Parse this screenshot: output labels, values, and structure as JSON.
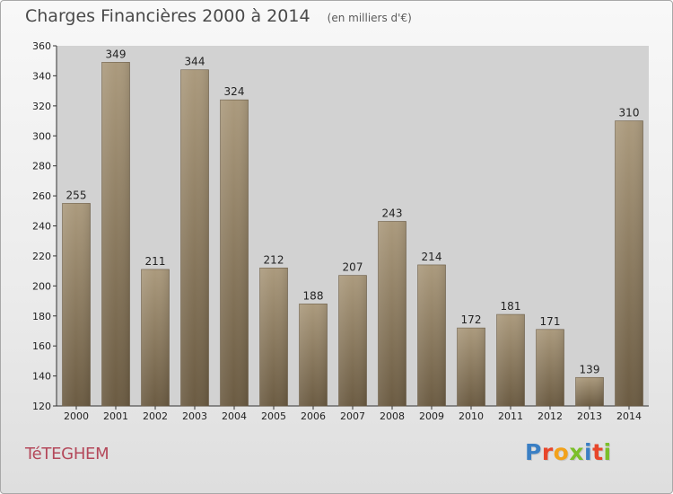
{
  "header": {
    "title": "Charges Financières 2000 à 2014",
    "subtitle": "(en milliers d'€)"
  },
  "footer": {
    "place_name": "TéTEGHEM",
    "logo_text": "Proxiti",
    "logo_letter_colors": [
      "#3a7fc4",
      "#e8462a",
      "#f2a21b",
      "#7bbf2a",
      "#3a7fc4",
      "#e8462a",
      "#7bbf2a"
    ]
  },
  "chart_data": {
    "type": "bar",
    "title": "Charges Financières 2000 à 2014",
    "subtitle": "(en milliers d'€)",
    "xlabel": "",
    "ylabel": "",
    "categories": [
      "2000",
      "2001",
      "2002",
      "2003",
      "2004",
      "2005",
      "2006",
      "2007",
      "2008",
      "2009",
      "2010",
      "2011",
      "2012",
      "2013",
      "2014"
    ],
    "values": [
      255,
      349,
      211,
      344,
      324,
      212,
      188,
      207,
      243,
      214,
      172,
      181,
      171,
      139,
      310
    ],
    "ylim": [
      120,
      360
    ],
    "yticks": [
      120,
      140,
      160,
      180,
      200,
      220,
      240,
      260,
      280,
      300,
      320,
      340,
      360
    ],
    "grid": false,
    "bar_color": "#8e7d62",
    "axis_area_color": "#d2d2d2"
  }
}
